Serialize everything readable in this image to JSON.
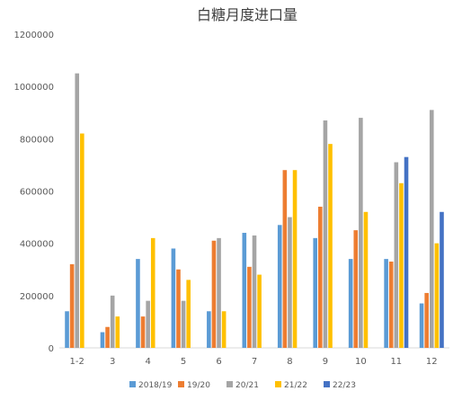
{
  "chart_data": {
    "type": "bar",
    "title": "白糖月度进口量",
    "xlabel": "",
    "ylabel": "",
    "ylim": [
      0,
      1200000
    ],
    "yticks": [
      0,
      200000,
      400000,
      600000,
      800000,
      1000000,
      1200000
    ],
    "ytick_labels": [
      "0",
      "200000",
      "400000",
      "600000",
      "800000",
      "1000000",
      "1200000"
    ],
    "grid": false,
    "legend_position": "bottom",
    "categories": [
      "1-2",
      "3",
      "4",
      "5",
      "6",
      "7",
      "8",
      "9",
      "10",
      "11",
      "12"
    ],
    "series": [
      {
        "name": "2018/19",
        "color": "#5B9BD5",
        "values": [
          140000,
          60000,
          340000,
          380000,
          140000,
          440000,
          470000,
          420000,
          340000,
          340000,
          170000
        ]
      },
      {
        "name": "19/20",
        "color": "#ED7D31",
        "values": [
          320000,
          80000,
          120000,
          300000,
          410000,
          310000,
          680000,
          540000,
          450000,
          330000,
          210000
        ]
      },
      {
        "name": "20/21",
        "color": "#A5A5A5",
        "values": [
          1050000,
          200000,
          180000,
          180000,
          420000,
          430000,
          500000,
          870000,
          880000,
          710000,
          910000
        ]
      },
      {
        "name": "21/22",
        "color": "#FFC000",
        "values": [
          820000,
          120000,
          420000,
          260000,
          140000,
          280000,
          680000,
          780000,
          520000,
          630000,
          400000
        ]
      },
      {
        "name": "22/23",
        "color": "#4472C4",
        "values": [
          null,
          null,
          null,
          null,
          null,
          null,
          null,
          null,
          null,
          730000,
          520000
        ]
      }
    ]
  }
}
